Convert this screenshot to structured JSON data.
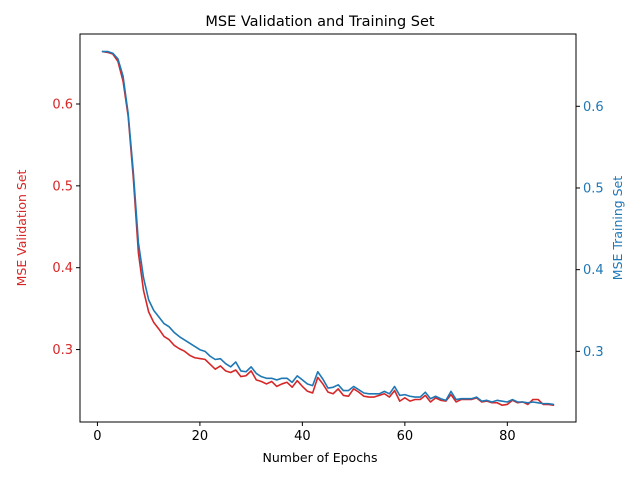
{
  "colors": {
    "validation": "#d62728",
    "training": "#1f77b4",
    "axis": "#000000",
    "background": "#ffffff"
  },
  "chart_data": {
    "type": "line",
    "title": "MSE Validation and Training Set",
    "xlabel": "Number of Epochs",
    "ylabel_left": "MSE Validation Set",
    "ylabel_right": "MSE Training Set",
    "xlim": [
      -3.4,
      93.4
    ],
    "ylim_left": [
      0.2115,
      0.6855
    ],
    "ylim_right": [
      0.2135,
      0.6885
    ],
    "x_ticks": [
      0,
      20,
      40,
      60,
      80
    ],
    "y_ticks_left": [
      0.3,
      0.4,
      0.5,
      0.6
    ],
    "y_ticks_right": [
      0.3,
      0.4,
      0.5,
      0.6
    ],
    "x_tick_labels": [
      "0",
      "20",
      "40",
      "60",
      "80"
    ],
    "y_tick_labels_left": [
      "0.3",
      "0.4",
      "0.5",
      "0.6"
    ],
    "y_tick_labels_right": [
      "0.3",
      "0.4",
      "0.5",
      "0.6"
    ],
    "grid": false,
    "legend": "none",
    "x": [
      1,
      2,
      3,
      4,
      5,
      6,
      7,
      8,
      9,
      10,
      11,
      12,
      13,
      14,
      15,
      16,
      17,
      18,
      19,
      20,
      21,
      22,
      23,
      24,
      25,
      26,
      27,
      28,
      29,
      30,
      31,
      32,
      33,
      34,
      35,
      36,
      37,
      38,
      39,
      40,
      41,
      42,
      43,
      44,
      45,
      46,
      47,
      48,
      49,
      50,
      51,
      52,
      53,
      54,
      55,
      56,
      57,
      58,
      59,
      60,
      61,
      62,
      63,
      64,
      65,
      66,
      67,
      68,
      69,
      70,
      71,
      72,
      73,
      74,
      75,
      76,
      77,
      78,
      79,
      80,
      81,
      82,
      83,
      84,
      85,
      86,
      87,
      88,
      89
    ],
    "series": [
      {
        "axis": "left",
        "color": "#d62728",
        "values": [
          0.664,
          0.663,
          0.661,
          0.652,
          0.628,
          0.585,
          0.51,
          0.418,
          0.372,
          0.346,
          0.333,
          0.325,
          0.316,
          0.312,
          0.305,
          0.301,
          0.298,
          0.293,
          0.29,
          0.289,
          0.288,
          0.282,
          0.276,
          0.28,
          0.274,
          0.272,
          0.275,
          0.267,
          0.268,
          0.274,
          0.263,
          0.261,
          0.258,
          0.261,
          0.255,
          0.258,
          0.26,
          0.254,
          0.262,
          0.255,
          0.249,
          0.247,
          0.266,
          0.258,
          0.248,
          0.246,
          0.252,
          0.244,
          0.243,
          0.252,
          0.248,
          0.243,
          0.242,
          0.242,
          0.244,
          0.246,
          0.242,
          0.25,
          0.237,
          0.241,
          0.237,
          0.239,
          0.239,
          0.244,
          0.236,
          0.241,
          0.238,
          0.237,
          0.245,
          0.236,
          0.239,
          0.239,
          0.239,
          0.241,
          0.236,
          0.237,
          0.235,
          0.235,
          0.232,
          0.233,
          0.238,
          0.235,
          0.236,
          0.233,
          0.239,
          0.239,
          0.233,
          0.233,
          0.232
        ]
      },
      {
        "axis": "right",
        "color": "#1f77b4",
        "values": [
          0.667,
          0.667,
          0.665,
          0.658,
          0.637,
          0.591,
          0.52,
          0.433,
          0.39,
          0.363,
          0.35,
          0.342,
          0.334,
          0.33,
          0.323,
          0.318,
          0.314,
          0.31,
          0.306,
          0.302,
          0.3,
          0.294,
          0.29,
          0.291,
          0.285,
          0.281,
          0.287,
          0.276,
          0.275,
          0.281,
          0.273,
          0.269,
          0.267,
          0.267,
          0.265,
          0.267,
          0.267,
          0.262,
          0.27,
          0.265,
          0.26,
          0.258,
          0.275,
          0.266,
          0.255,
          0.256,
          0.259,
          0.252,
          0.252,
          0.257,
          0.253,
          0.249,
          0.248,
          0.248,
          0.248,
          0.251,
          0.248,
          0.257,
          0.246,
          0.247,
          0.245,
          0.244,
          0.244,
          0.25,
          0.242,
          0.245,
          0.242,
          0.24,
          0.251,
          0.241,
          0.242,
          0.242,
          0.242,
          0.244,
          0.239,
          0.24,
          0.238,
          0.24,
          0.239,
          0.238,
          0.241,
          0.238,
          0.238,
          0.237,
          0.238,
          0.237,
          0.236,
          0.236,
          0.235
        ]
      }
    ]
  }
}
